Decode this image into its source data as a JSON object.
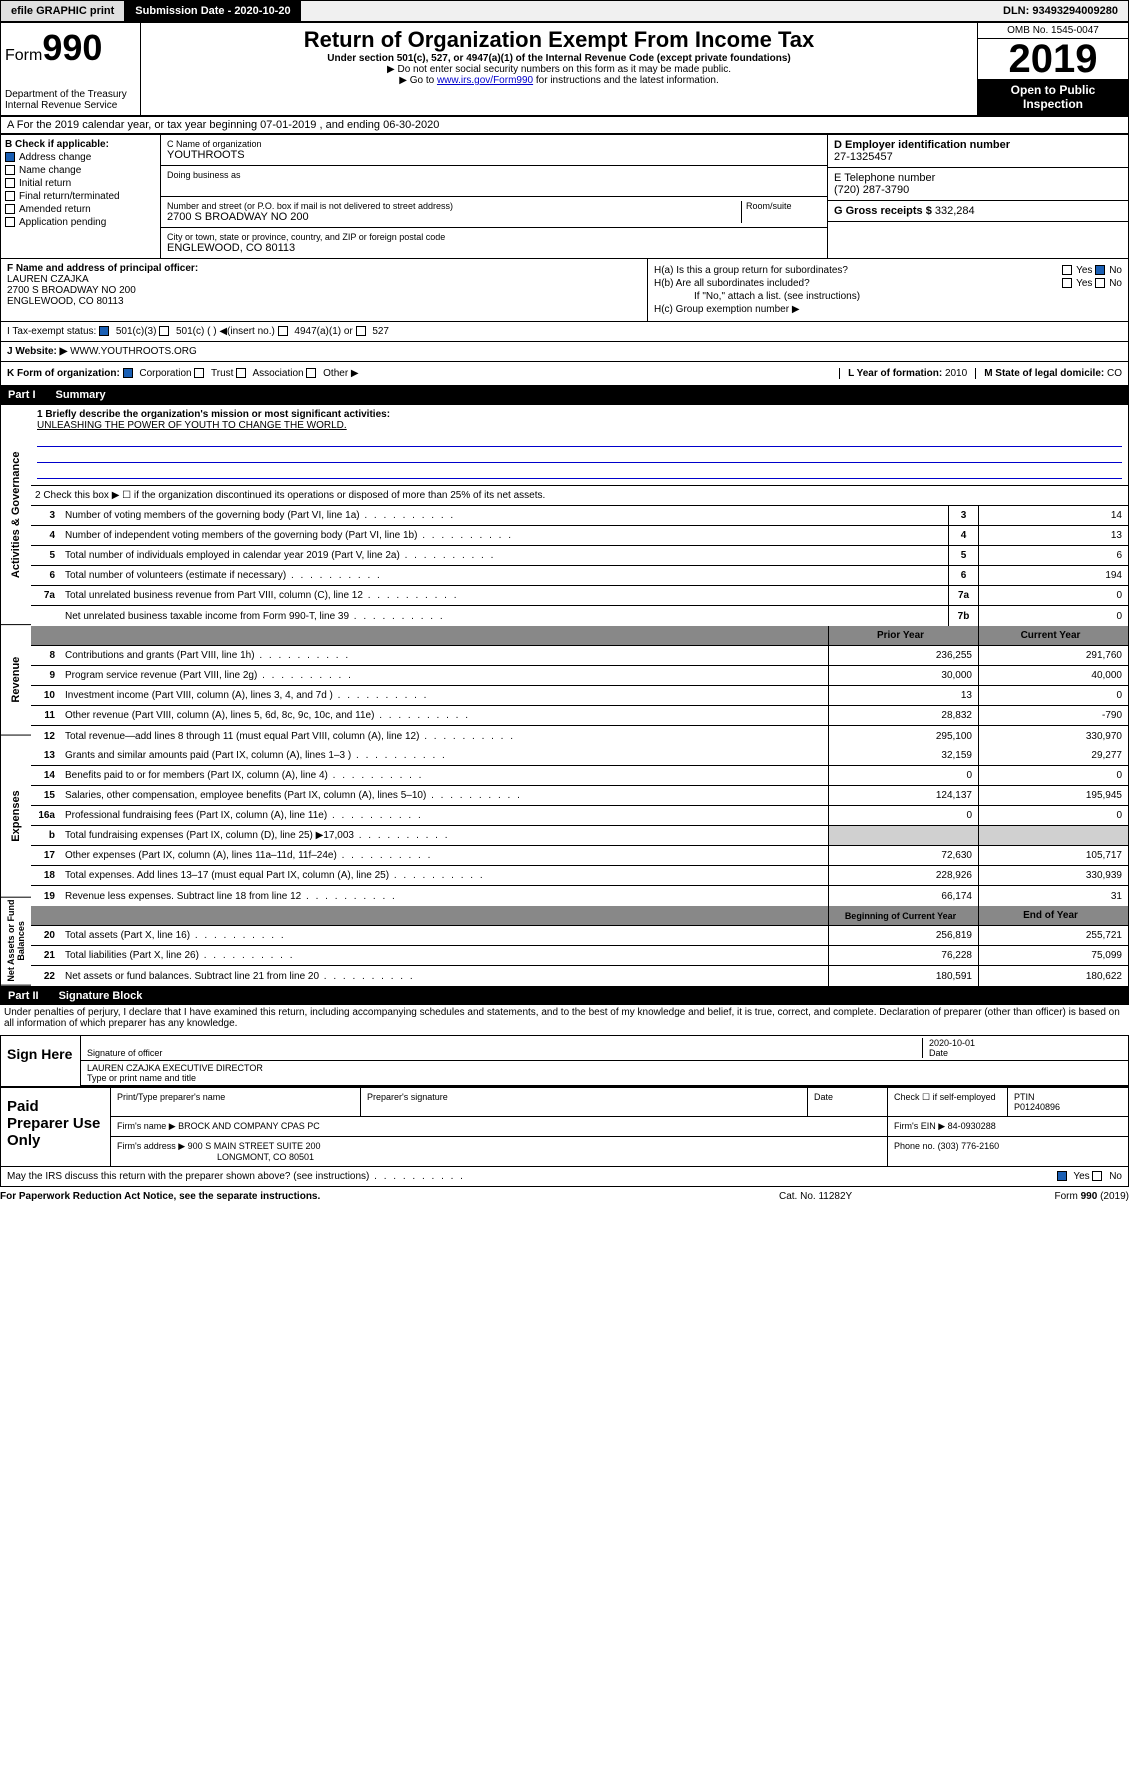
{
  "top": {
    "efile": "efile GRAPHIC print",
    "submission": "Submission Date - 2020-10-20",
    "dln": "DLN: 93493294009280"
  },
  "header": {
    "form_prefix": "Form",
    "form_num": "990",
    "dept": "Department of the Treasury\nInternal Revenue Service",
    "title": "Return of Organization Exempt From Income Tax",
    "subtitle": "Under section 501(c), 527, or 4947(a)(1) of the Internal Revenue Code (except private foundations)",
    "note1": "▶ Do not enter social security numbers on this form as it may be made public.",
    "note2_pre": "▶ Go to ",
    "note2_link": "www.irs.gov/Form990",
    "note2_post": " for instructions and the latest information.",
    "omb": "OMB No. 1545-0047",
    "year": "2019",
    "open": "Open to Public Inspection"
  },
  "section_a": "A For the 2019 calendar year, or tax year beginning 07-01-2019    , and ending 06-30-2020",
  "box_b": {
    "label": "B Check if applicable:",
    "items": [
      "Address change",
      "Name change",
      "Initial return",
      "Final return/terminated",
      "Amended return",
      "Application pending"
    ],
    "checked_idx": 0
  },
  "box_c": {
    "name_label": "C Name of organization",
    "name": "YOUTHROOTS",
    "dba_label": "Doing business as",
    "addr_label": "Number and street (or P.O. box if mail is not delivered to street address)",
    "room_label": "Room/suite",
    "addr": "2700 S BROADWAY NO 200",
    "city_label": "City or town, state or province, country, and ZIP or foreign postal code",
    "city": "ENGLEWOOD, CO  80113"
  },
  "box_d": {
    "label": "D Employer identification number",
    "val": "27-1325457"
  },
  "box_e": {
    "label": "E Telephone number",
    "val": "(720) 287-3790"
  },
  "box_g": {
    "label": "G Gross receipts $",
    "val": "332,284"
  },
  "box_f": {
    "label": "F  Name and address of principal officer:",
    "name": "LAUREN CZAJKA",
    "addr1": "2700 S BROADWAY NO 200",
    "addr2": "ENGLEWOOD, CO  80113"
  },
  "box_h": {
    "ha": "H(a)  Is this a group return for subordinates?",
    "hb": "H(b)  Are all subordinates included?",
    "hb_note": "If \"No,\" attach a list. (see instructions)",
    "hc": "H(c)  Group exemption number ▶",
    "yes": "Yes",
    "no": "No"
  },
  "box_i": {
    "label": "I   Tax-exempt status:",
    "opt1": "501(c)(3)",
    "opt2": "501(c) (  ) ◀(insert no.)",
    "opt3": "4947(a)(1) or",
    "opt4": "527"
  },
  "box_j": {
    "label": "J   Website: ▶",
    "val": "WWW.YOUTHROOTS.ORG"
  },
  "box_k": {
    "label": "K Form of organization:",
    "opts": [
      "Corporation",
      "Trust",
      "Association",
      "Other ▶"
    ]
  },
  "box_l": {
    "label": "L Year of formation:",
    "val": "2010"
  },
  "box_m": {
    "label": "M State of legal domicile:",
    "val": "CO"
  },
  "part1": {
    "header": "Part I",
    "title": "Summary",
    "side_labels": [
      "Activities & Governance",
      "Revenue",
      "Expenses",
      "Net Assets or Fund Balances"
    ],
    "line1_label": "1  Briefly describe the organization's mission or most significant activities:",
    "mission": "UNLEASHING THE POWER OF YOUTH TO CHANGE THE WORLD.",
    "line2": "2   Check this box ▶ ☐  if the organization discontinued its operations or disposed of more than 25% of its net assets.",
    "rows_gov": [
      {
        "n": "3",
        "d": "Number of voting members of the governing body (Part VI, line 1a)",
        "b": "3",
        "v": "14"
      },
      {
        "n": "4",
        "d": "Number of independent voting members of the governing body (Part VI, line 1b)",
        "b": "4",
        "v": "13"
      },
      {
        "n": "5",
        "d": "Total number of individuals employed in calendar year 2019 (Part V, line 2a)",
        "b": "5",
        "v": "6"
      },
      {
        "n": "6",
        "d": "Total number of volunteers (estimate if necessary)",
        "b": "6",
        "v": "194"
      },
      {
        "n": "7a",
        "d": "Total unrelated business revenue from Part VIII, column (C), line 12",
        "b": "7a",
        "v": "0"
      },
      {
        "n": "",
        "d": "Net unrelated business taxable income from Form 990-T, line 39",
        "b": "7b",
        "v": "0"
      }
    ],
    "prior_hdr": "Prior Year",
    "current_hdr": "Current Year",
    "rows_rev": [
      {
        "n": "8",
        "d": "Contributions and grants (Part VIII, line 1h)",
        "p": "236,255",
        "c": "291,760"
      },
      {
        "n": "9",
        "d": "Program service revenue (Part VIII, line 2g)",
        "p": "30,000",
        "c": "40,000"
      },
      {
        "n": "10",
        "d": "Investment income (Part VIII, column (A), lines 3, 4, and 7d )",
        "p": "13",
        "c": "0"
      },
      {
        "n": "11",
        "d": "Other revenue (Part VIII, column (A), lines 5, 6d, 8c, 9c, 10c, and 11e)",
        "p": "28,832",
        "c": "-790"
      },
      {
        "n": "12",
        "d": "Total revenue—add lines 8 through 11 (must equal Part VIII, column (A), line 12)",
        "p": "295,100",
        "c": "330,970"
      }
    ],
    "rows_exp": [
      {
        "n": "13",
        "d": "Grants and similar amounts paid (Part IX, column (A), lines 1–3 )",
        "p": "32,159",
        "c": "29,277"
      },
      {
        "n": "14",
        "d": "Benefits paid to or for members (Part IX, column (A), line 4)",
        "p": "0",
        "c": "0"
      },
      {
        "n": "15",
        "d": "Salaries, other compensation, employee benefits (Part IX, column (A), lines 5–10)",
        "p": "124,137",
        "c": "195,945"
      },
      {
        "n": "16a",
        "d": "Professional fundraising fees (Part IX, column (A), line 11e)",
        "p": "0",
        "c": "0"
      },
      {
        "n": "b",
        "d": "Total fundraising expenses (Part IX, column (D), line 25) ▶17,003",
        "p": "",
        "c": "",
        "shade": true
      },
      {
        "n": "17",
        "d": "Other expenses (Part IX, column (A), lines 11a–11d, 11f–24e)",
        "p": "72,630",
        "c": "105,717"
      },
      {
        "n": "18",
        "d": "Total expenses. Add lines 13–17 (must equal Part IX, column (A), line 25)",
        "p": "228,926",
        "c": "330,939"
      },
      {
        "n": "19",
        "d": "Revenue less expenses. Subtract line 18 from line 12",
        "p": "66,174",
        "c": "31"
      }
    ],
    "beg_hdr": "Beginning of Current Year",
    "end_hdr": "End of Year",
    "rows_net": [
      {
        "n": "20",
        "d": "Total assets (Part X, line 16)",
        "p": "256,819",
        "c": "255,721"
      },
      {
        "n": "21",
        "d": "Total liabilities (Part X, line 26)",
        "p": "76,228",
        "c": "75,099"
      },
      {
        "n": "22",
        "d": "Net assets or fund balances. Subtract line 21 from line 20",
        "p": "180,591",
        "c": "180,622"
      }
    ]
  },
  "part2": {
    "header": "Part II",
    "title": "Signature Block",
    "penalties": "Under penalties of perjury, I declare that I have examined this return, including accompanying schedules and statements, and to the best of my knowledge and belief, it is true, correct, and complete. Declaration of preparer (other than officer) is based on all information of which preparer has any knowledge.",
    "sign_here": "Sign Here",
    "sig_officer": "Signature of officer",
    "sig_date": "2020-10-01",
    "date_lbl": "Date",
    "officer_name": "LAUREN CZAJKA  EXECUTIVE DIRECTOR",
    "type_name": "Type or print name and title",
    "paid_prep": "Paid Preparer Use Only",
    "prep_name_lbl": "Print/Type preparer's name",
    "prep_sig_lbl": "Preparer's signature",
    "prep_date_lbl": "Date",
    "check_self": "Check ☐ if self-employed",
    "ptin_lbl": "PTIN",
    "ptin": "P01240896",
    "firm_name_lbl": "Firm's name    ▶",
    "firm_name": "BROCK AND COMPANY CPAS PC",
    "firm_ein_lbl": "Firm's EIN ▶",
    "firm_ein": "84-0930288",
    "firm_addr_lbl": "Firm's address ▶",
    "firm_addr1": "900 S MAIN STREET SUITE 200",
    "firm_addr2": "LONGMONT, CO  80501",
    "phone_lbl": "Phone no.",
    "phone": "(303) 776-2160",
    "discuss": "May the IRS discuss this return with the preparer shown above? (see instructions)",
    "yes": "Yes",
    "no": "No"
  },
  "footer": {
    "paperwork": "For Paperwork Reduction Act Notice, see the separate instructions.",
    "cat": "Cat. No. 11282Y",
    "form": "Form 990 (2019)"
  }
}
